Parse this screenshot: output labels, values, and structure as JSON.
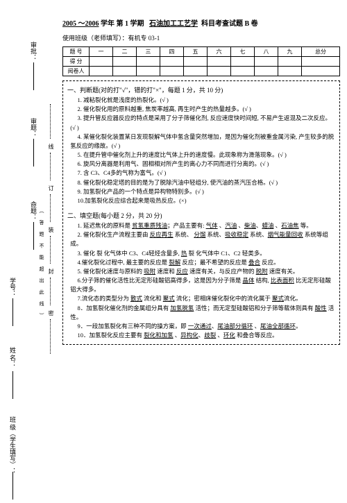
{
  "title_parts": {
    "year": "2005 ～2006",
    "sem": "学年 第 1 学期",
    "course": "石油加工工艺学",
    "tail": "科目考查试题 B 卷"
  },
  "subtitle": "使用班级（老师填写）：有机专 03-1",
  "table": {
    "headers": [
      "题 号",
      "一",
      "二",
      "三",
      "四",
      "五",
      "六",
      "七",
      "八",
      "九",
      "总分"
    ],
    "rows": [
      "得 分",
      "阅卷人"
    ]
  },
  "sidebar": {
    "labels": [
      "审批：",
      "审题：",
      "命题：",
      "学号：",
      "姓 名：",
      "班  级（学生填写）："
    ],
    "dotted": [
      "线",
      "订",
      "装",
      "封",
      "密"
    ],
    "instruction": "（  答    题    不    能    超    出    此    线  ）"
  },
  "s1": {
    "title": "一、判断题(对的打\"√\"，错的打\"×\"，每题 1 分，共 10 分)",
    "items": [
      "1. 减粘裂化就是浅度的热裂化。(√ )",
      "2. 催化裂化用的原料越重, 焦炭率越高, 再生时产生的热量越多。(√ )",
      "3. 提升管反应器反应的特点是采用了分子筛催化剂, 反应速度快时间短, 不易产生返混及二次反应。(√ )",
      "4. 某催化裂化装置某日发现裂解气体中氢含量突然增加，是因为催化剂被重金属污染, 产生较多的脱氢反应的缘故。(√ )",
      "5. 在提升管中催化剂上升的速度比气体上升的速度慢。此现象称为滑落现象。(√ )",
      "6. 旋风分离器是利用气、固相相对所产生的离心力不同而进行分离的。(√ )",
      "7. 含 C3、C4多的气称为富气。(√ )",
      "8. 催化裂化稳定塔的目的是为了脱除汽油中轻组分, 使汽油的蒸汽压合格。(√ )",
      "9. 加氢裂化产品的一个特点是异构物特别多。(√ )",
      "10.加氢裂化反应综合起来是吸热反应。(×)"
    ]
  },
  "s2": {
    "title": "二、填空题(每小题 2 分，共 20 分)",
    "items": [
      {
        "pre": "1. 延迟焦化的原料是 ",
        "u1": "贫氢重质残油",
        "mid": "；产品主要有: ",
        "u2": "气体",
        "m2": " 、",
        "u3": "汽油",
        "m3": " 、",
        "u4": "柴油",
        "m4": "、",
        "u5": "蜡油",
        "m5": " 、",
        "u6": "石油焦",
        "tail": " 等。"
      },
      {
        "pre": "2. 催化裂化生产流程主要由 ",
        "u1": "反应再生",
        "mid": " 系统、 ",
        "u2": "分馏",
        "m2": " 系统、",
        "u3": "吸收稳定",
        "m3": " 系统、",
        "u4": "烟气能量回收",
        "tail": " 系统等组成。"
      },
      {
        "pre": "3. 催化 裂 化气体中 C3、C4轻烃含量多, ",
        "u1": "热",
        "mid": " 裂 化气体中 C1、C2 轻类多。"
      },
      {
        "pre": "4.催化裂化过程中, 最主要的反应是 ",
        "u1": "裂解",
        "mid": " 反应；最不希望的反应是 ",
        "u2": "叠合",
        "tail": " 反应。"
      },
      {
        "pre": "5. 催化裂化速度与原料的 ",
        "u1": "吸附",
        "mid": " 速度和 ",
        "u2": "反应",
        "m2": " 速度有关，与反应产物的 ",
        "u3": "脱附",
        "tail": " 速度有关。"
      },
      {
        "pre": "6.分子筛的催化活性比无定形硅酸铝高得多，这是因为分子筛是 ",
        "u1": "晶体",
        "mid": " 结构, ",
        "u2": "比表面积",
        "tail": " 比无定形硅酸铝大得多。"
      },
      {
        "pre": "7.流化态的类型分为 ",
        "u1": "散式",
        "mid": " 流化和 ",
        "u2": "聚式",
        "m2": " 流化；密相床催化裂化中的流化属于 ",
        "u3": "聚式",
        "tail": "流化。"
      },
      {
        "pre": "8．加氢裂化催化剂的金属组分具有 ",
        "u1": "加氢脱氢",
        "mid": " 活性；而无定型硅酸铝和分子筛等载体则具有 ",
        "u2": "酸性",
        "tail": " 活性。"
      },
      {
        "pre": "9．一段加氢裂化有三种不同的操方案，即 ",
        "u1": "一次通过",
        "mid": "、",
        "u2": "尾油部分循环",
        "m2": " 、",
        "u3": "尾油全部循环",
        "tail": "。"
      },
      {
        "pre": "10．加氢裂化反应主要有 ",
        "u1": "裂化和加氢",
        "mid": " 、",
        "u2": "异构化",
        "m2": "、",
        "u3": "歧裂",
        "m3": " 、",
        "u4": "环化",
        "tail": " 和叠合等反应。"
      }
    ]
  }
}
